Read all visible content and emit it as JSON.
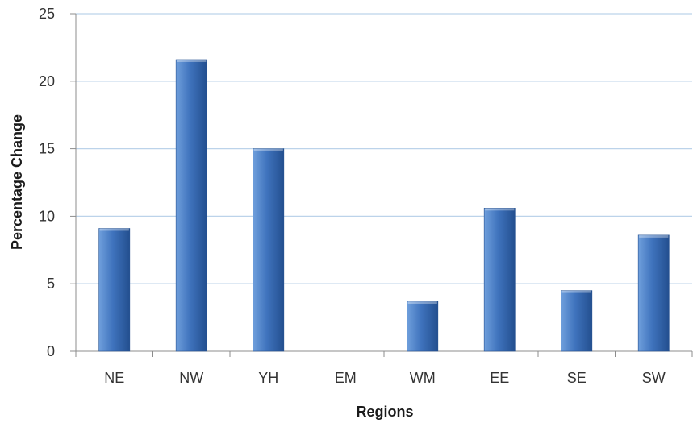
{
  "chart_data": {
    "type": "bar",
    "title": "",
    "xlabel": "Regions",
    "ylabel": "Percentage Change",
    "categories": [
      "NE",
      "NW",
      "YH",
      "EM",
      "WM",
      "EE",
      "SE",
      "SW"
    ],
    "values": [
      9.1,
      21.6,
      15.0,
      0,
      3.7,
      10.6,
      4.5,
      8.6
    ],
    "ylim": [
      0,
      25
    ],
    "yticks": [
      "0",
      "5",
      "10",
      "15",
      "20",
      "25"
    ],
    "grid": true,
    "legend": "none",
    "colors": {
      "bar_light": "#6f9fdc",
      "bar_mid": "#3f73bd",
      "bar_dark": "#234f8f",
      "grid": "#bcd3ea",
      "axis": "#8c8c8c"
    }
  }
}
